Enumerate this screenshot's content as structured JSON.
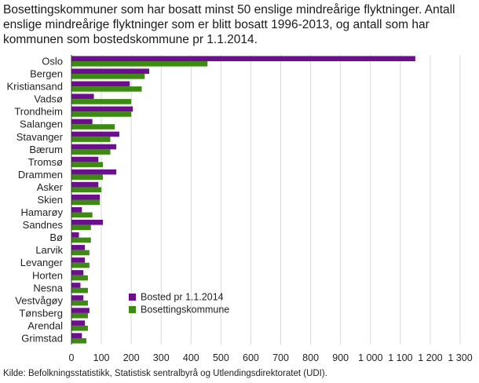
{
  "chart_data": {
    "type": "bar",
    "orientation": "horizontal",
    "title": "Bosettingskommuner som har bosatt minst 50 enslige mindreårige flyktninger. Antall enslige mindreårige flyktninger som er blitt bosatt 1996-2013, og antall som har kommunen som bostedskommune pr 1.1.2014.",
    "categories": [
      "Oslo",
      "Bergen",
      "Kristiansand",
      "Vadsø",
      "Trondheim",
      "Salangen",
      "Stavanger",
      "Bærum",
      "Tromsø",
      "Drammen",
      "Asker",
      "Skien",
      "Hamarøy",
      "Sandnes",
      "Bø",
      "Larvik",
      "Levanger",
      "Horten",
      "Nesna",
      "Vestvågøy",
      "Tønsberg",
      "Arendal",
      "Grimstad"
    ],
    "series": [
      {
        "name": "Bosted pr 1.1.2014",
        "color": "#6b0f8c",
        "values": [
          1150,
          260,
          195,
          75,
          205,
          70,
          160,
          150,
          90,
          150,
          90,
          95,
          35,
          105,
          25,
          45,
          45,
          40,
          30,
          40,
          60,
          45,
          35
        ]
      },
      {
        "name": "Bosettingskommune",
        "color": "#3d8a13",
        "values": [
          455,
          245,
          235,
          200,
          200,
          145,
          130,
          130,
          105,
          105,
          100,
          95,
          70,
          65,
          65,
          60,
          60,
          55,
          55,
          55,
          55,
          55,
          50
        ]
      }
    ],
    "xlim": [
      0,
      1300
    ],
    "xticks": [
      "0",
      "100",
      "200",
      "300",
      "400",
      "500",
      "600",
      "700",
      "800",
      "900",
      "1 000",
      "1 100",
      "1 200",
      "1 300"
    ],
    "xlabel": "",
    "ylabel": "",
    "grid": "vertical",
    "legend": "bottom-center, inside plot"
  },
  "source": "Kilde: Befolkningsstatistikk, Statistisk sentralbyrå og Utlendingsdirektoratet (UDI)."
}
